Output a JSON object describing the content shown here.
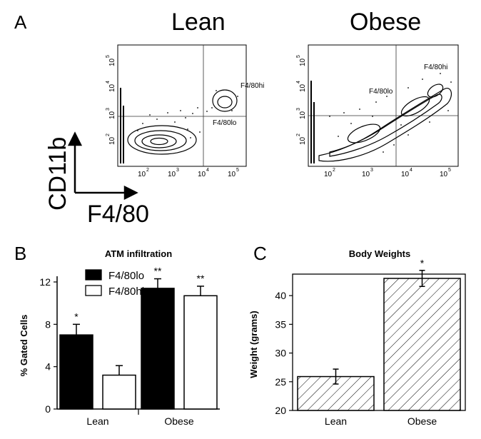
{
  "panel_a": {
    "letter": "A",
    "flow_plots": [
      {
        "title": "Lean",
        "x_ticks": [
          "10",
          "10",
          "10",
          "10"
        ],
        "x_exps": [
          "2",
          "3",
          "4",
          "5"
        ],
        "y_ticks": [
          "10",
          "10",
          "10",
          "10"
        ],
        "y_exps": [
          "2",
          "3",
          "4",
          "5"
        ],
        "gate_labels": [
          "F4/80hi",
          "F4/80lo"
        ]
      },
      {
        "title": "Obese",
        "x_ticks": [
          "10",
          "10",
          "10",
          "10"
        ],
        "x_exps": [
          "2",
          "3",
          "4",
          "5"
        ],
        "y_ticks": [
          "10",
          "10",
          "10",
          "10"
        ],
        "y_exps": [
          "2",
          "3",
          "4",
          "5"
        ],
        "gate_labels": [
          "F4/80hi",
          "F4/80lo"
        ]
      }
    ],
    "y_axis_label": "CD11b",
    "x_axis_label": "F4/80"
  },
  "panel_b": {
    "letter": "B"
  },
  "panel_c": {
    "letter": "C"
  },
  "chart_data": [
    {
      "type": "bar",
      "title": "ATM infiltration",
      "xlabel": "",
      "ylabel": "% Gated Cells",
      "categories": [
        "Lean",
        "Obese"
      ],
      "ylim": [
        0,
        12
      ],
      "yticks": [
        0,
        4,
        8,
        12
      ],
      "legend_position": "top-left",
      "series": [
        {
          "name": "F4/80lo",
          "color": "#000000",
          "values": [
            7.0,
            11.4
          ],
          "errors": [
            1.0,
            0.9
          ],
          "significance": [
            "*",
            "**"
          ]
        },
        {
          "name": "F4/80hi",
          "color": "#ffffff",
          "values": [
            3.2,
            10.7
          ],
          "errors": [
            0.9,
            0.9
          ],
          "significance": [
            "",
            "**"
          ]
        }
      ]
    },
    {
      "type": "bar",
      "title": "Body Weights",
      "xlabel": "",
      "ylabel": "Weight (grams)",
      "categories": [
        "Lean",
        "Obese"
      ],
      "ylim": [
        20,
        43
      ],
      "yticks": [
        20,
        25,
        30,
        35,
        40
      ],
      "fill": "diagonal-hatch",
      "series": [
        {
          "values": [
            25.9,
            43.0
          ],
          "errors": [
            1.3,
            1.4
          ],
          "significance": [
            "",
            "*"
          ]
        }
      ]
    }
  ]
}
